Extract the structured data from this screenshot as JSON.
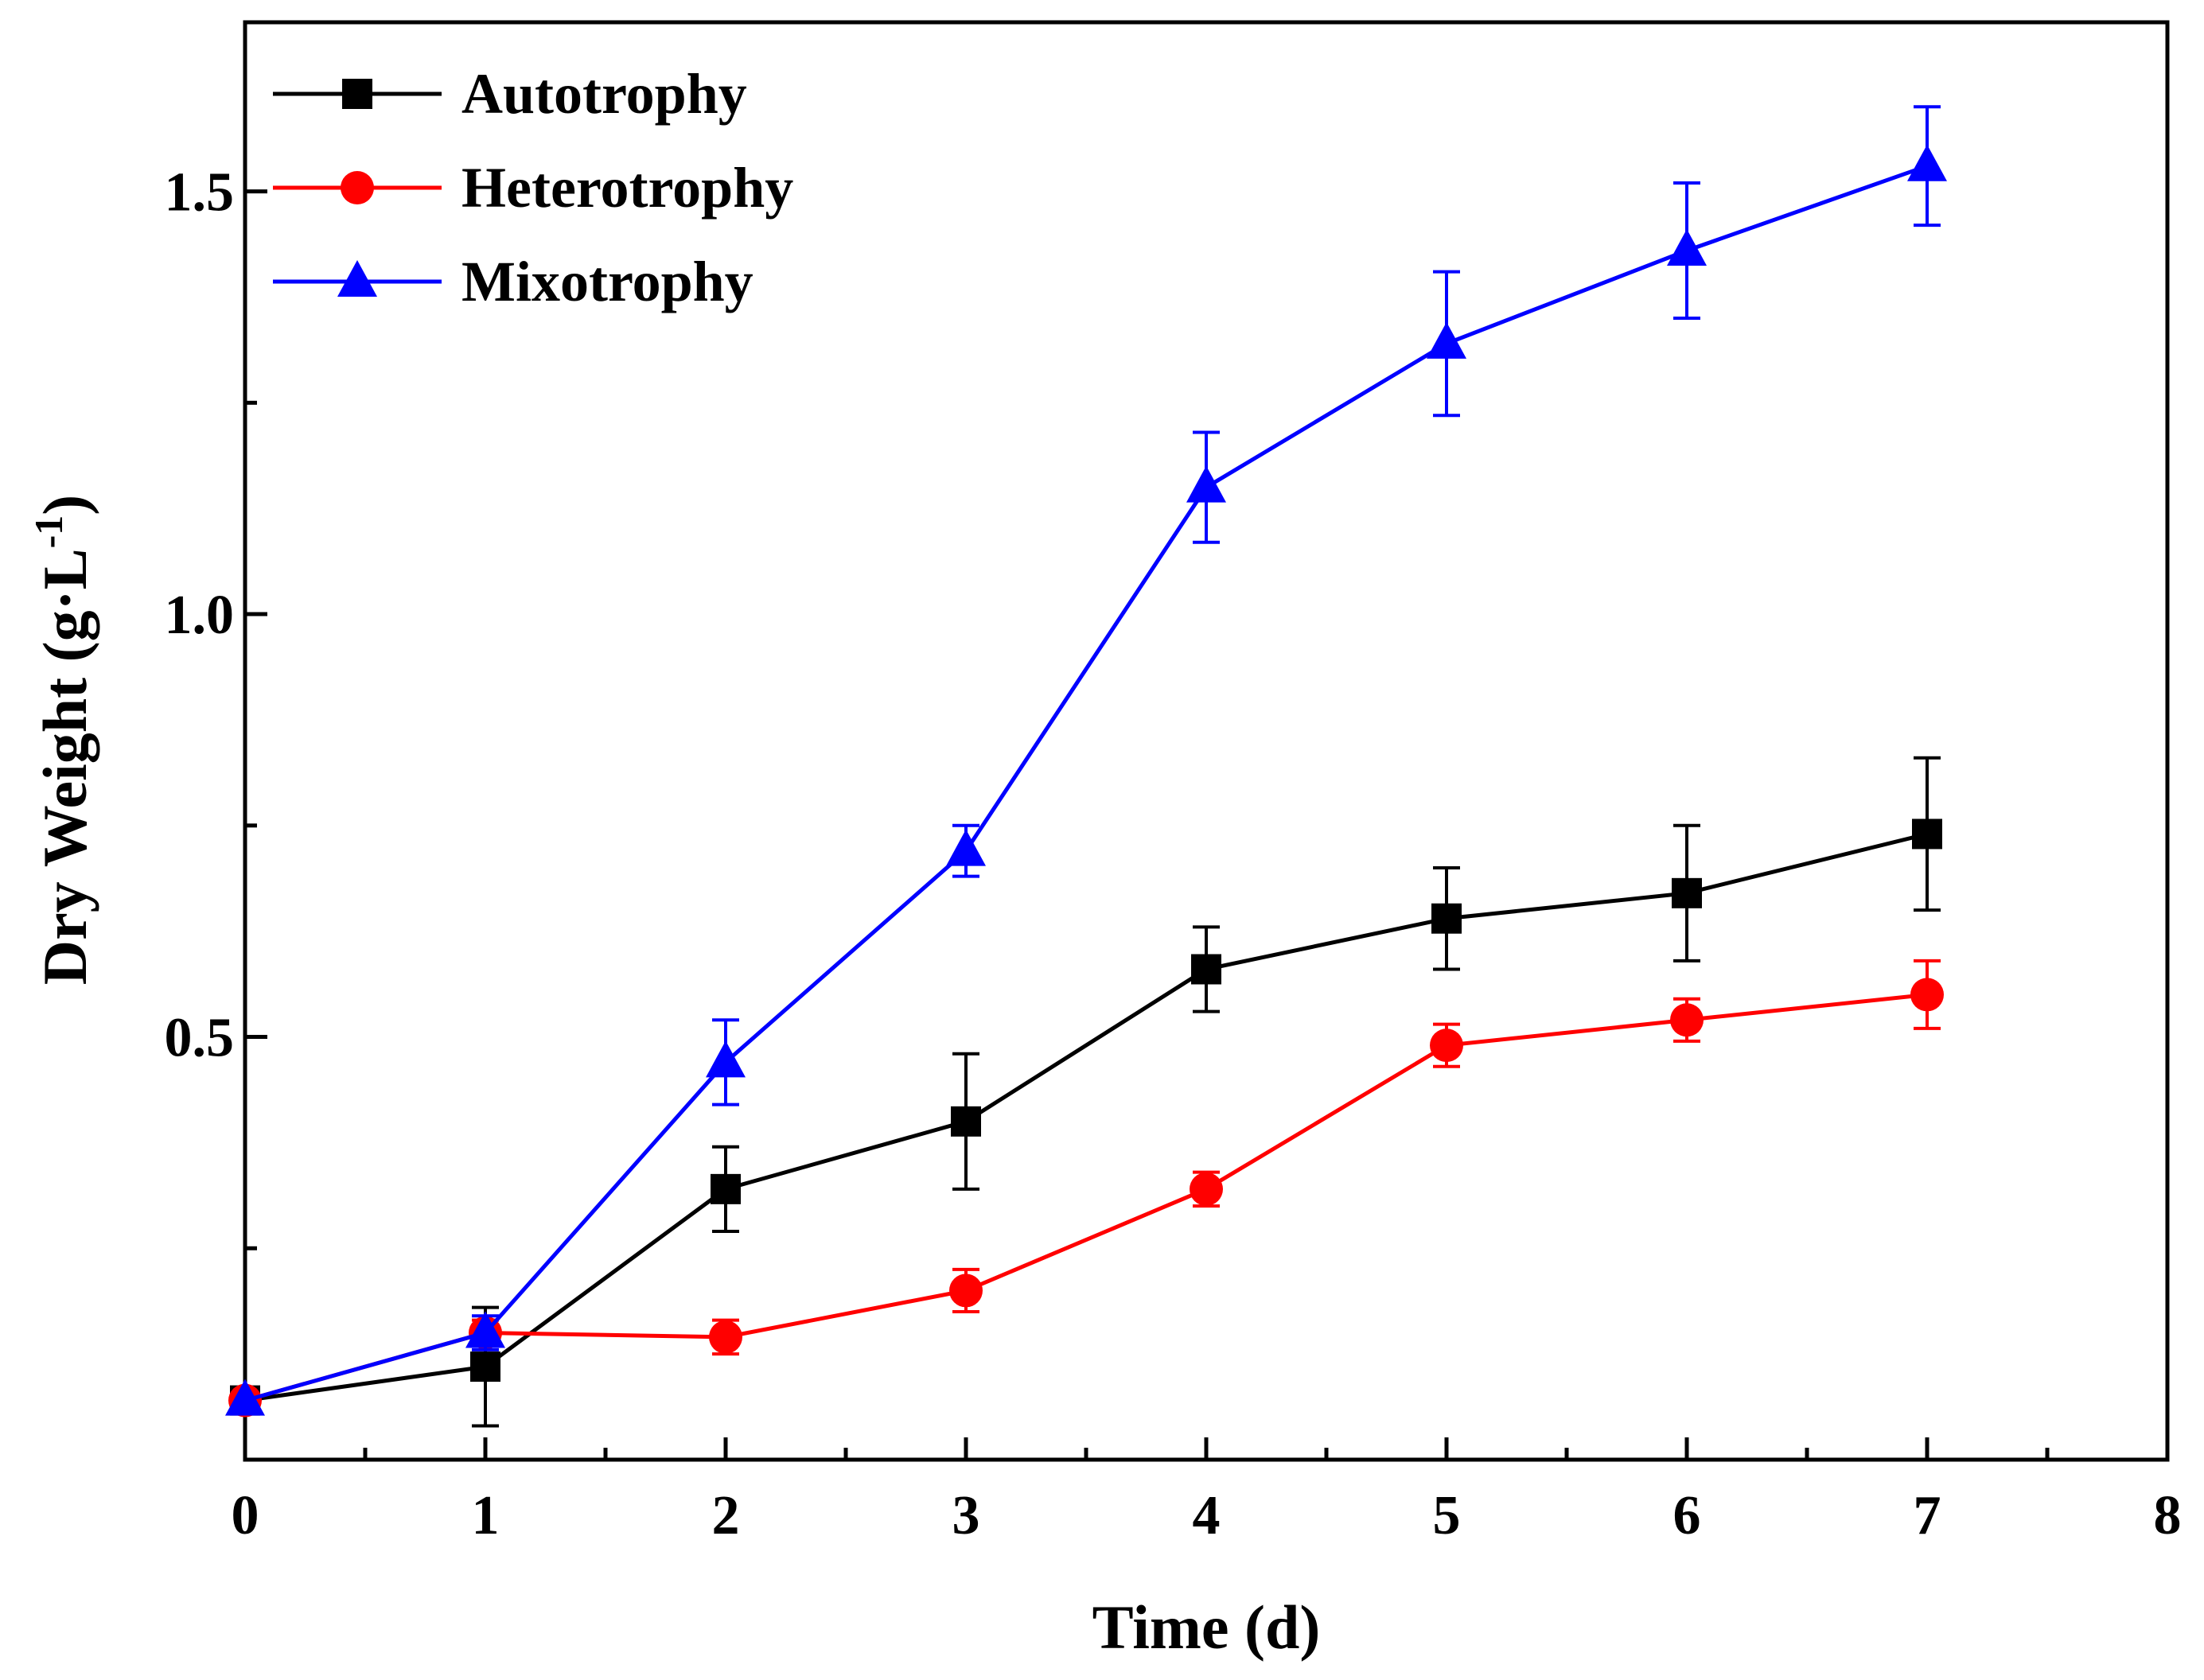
{
  "chart_data": {
    "type": "line",
    "title": "",
    "xlabel": "Time (d)",
    "ylabel_main": "Dry Weight (g·L",
    "ylabel_sup": "-1",
    "ylabel_close": ")",
    "xlim": [
      0,
      8
    ],
    "ylim": [
      0.0,
      1.7
    ],
    "x_ticks": [
      0,
      1,
      2,
      3,
      4,
      5,
      6,
      7,
      8
    ],
    "x_tick_labels": [
      "0",
      "1",
      "2",
      "3",
      "4",
      "5",
      "6",
      "7",
      "8"
    ],
    "x_minor_ticks": [
      0.5,
      1.5,
      2.5,
      3.5,
      4.5,
      5.5,
      6.5,
      7.5
    ],
    "y_ticks": [
      0.5,
      1.0,
      1.5
    ],
    "y_tick_labels": [
      "0.5",
      "1.0",
      "1.5"
    ],
    "y_minor_ticks": [
      0.25,
      0.75,
      1.25
    ],
    "legend_position": "top-left",
    "grid": false,
    "x": [
      0,
      1,
      2,
      3,
      4,
      5,
      6,
      7
    ],
    "series": [
      {
        "name": "Autotrophy",
        "color": "#000000",
        "marker": "square",
        "values": [
          0.07,
          0.11,
          0.32,
          0.4,
          0.58,
          0.64,
          0.67,
          0.74
        ],
        "errors": [
          0.005,
          0.07,
          0.05,
          0.08,
          0.05,
          0.06,
          0.08,
          0.09
        ]
      },
      {
        "name": "Heterotrophy",
        "color": "#ff0000",
        "marker": "circle",
        "values": [
          0.07,
          0.15,
          0.145,
          0.2,
          0.32,
          0.49,
          0.52,
          0.55
        ],
        "errors": [
          0.005,
          0.015,
          0.02,
          0.025,
          0.02,
          0.025,
          0.025,
          0.04
        ]
      },
      {
        "name": "Mixotrophy",
        "color": "#0000ff",
        "marker": "triangle",
        "values": [
          0.07,
          0.15,
          0.47,
          0.72,
          1.15,
          1.32,
          1.43,
          1.53
        ],
        "errors": [
          0.005,
          0.02,
          0.05,
          0.03,
          0.065,
          0.085,
          0.08,
          0.07
        ]
      }
    ]
  }
}
